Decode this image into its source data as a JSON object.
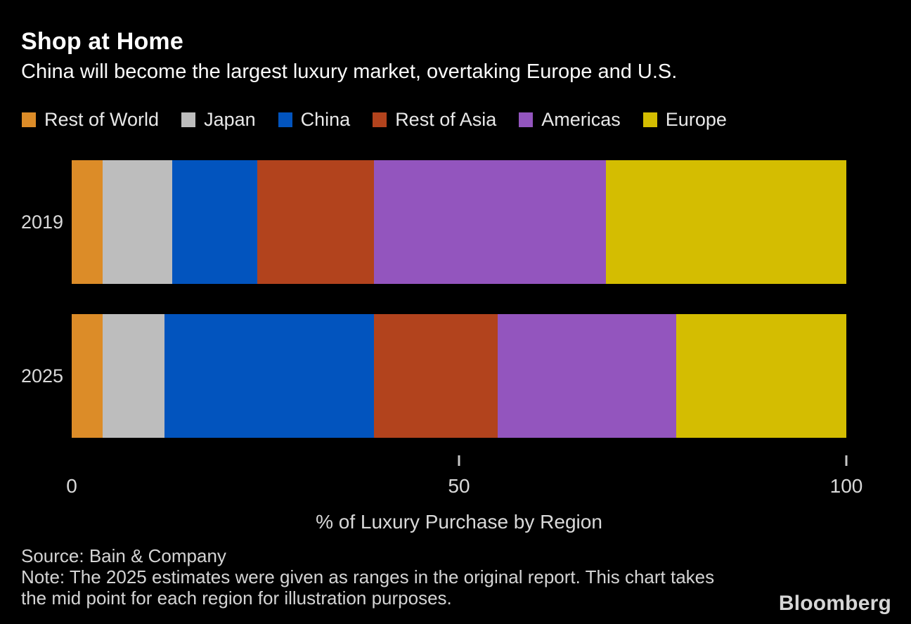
{
  "header": {
    "title": "Shop at Home",
    "subtitle": "China will become the largest luxury market, overtaking Europe and U.S."
  },
  "chart_data": {
    "type": "bar",
    "orientation": "horizontal",
    "stacked": true,
    "title": "Shop at Home",
    "subtitle": "China will become the largest luxury market, overtaking Europe and U.S.",
    "categories": [
      "2019",
      "2025"
    ],
    "series": [
      {
        "name": "Rest of World",
        "color": "#DC8C28",
        "values": [
          4,
          4
        ]
      },
      {
        "name": "Japan",
        "color": "#BDBDBD",
        "values": [
          9,
          8
        ]
      },
      {
        "name": "China",
        "color": "#0254BE",
        "values": [
          11,
          27
        ]
      },
      {
        "name": "Rest of Asia",
        "color": "#B2431D",
        "values": [
          15,
          16
        ]
      },
      {
        "name": "Americas",
        "color": "#9355BE",
        "values": [
          30,
          23
        ]
      },
      {
        "name": "Europe",
        "color": "#D4BD01",
        "values": [
          31,
          22
        ]
      }
    ],
    "xlabel": "% of Luxury Purchase by Region",
    "xlim": [
      0,
      100
    ],
    "xticks": [
      0,
      50,
      100
    ],
    "tick_marks": [
      50,
      100
    ],
    "legend_position": "top",
    "grid": false,
    "background_color": "#000000",
    "text_color": "#D9D9D9"
  },
  "footer": {
    "source": "Source: Bain & Company",
    "note": "Note: The 2025 estimates were given as ranges in the original report. This chart takes the mid point for each region for illustration purposes.",
    "brand": "Bloomberg"
  }
}
